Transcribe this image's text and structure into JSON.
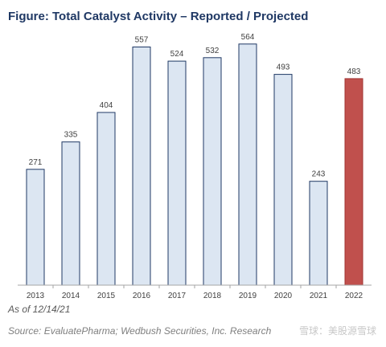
{
  "title": "Figure:  Total Catalyst Activity – Reported / Projected",
  "footnote": "As of 12/14/21",
  "source": "Source: EvaluatePharma; Wedbush Securities, Inc. Research",
  "watermark": "雪球：美股源雪球",
  "colors": {
    "reported": "#dce6f2",
    "projected": "#c0504d",
    "bar_border": "#1f3864",
    "projected_border": "#a03532",
    "title": "#1f3864"
  },
  "chart_data": {
    "type": "bar",
    "title": "Total Catalyst Activity – Reported / Projected",
    "xlabel": "",
    "ylabel": "",
    "categories": [
      "2013",
      "2014",
      "2015",
      "2016",
      "2017",
      "2018",
      "2019",
      "2020",
      "2021",
      "2022"
    ],
    "values": [
      271,
      335,
      404,
      557,
      524,
      532,
      564,
      493,
      243,
      483
    ],
    "projected": [
      false,
      false,
      false,
      false,
      false,
      false,
      false,
      false,
      false,
      true
    ],
    "ylim": [
      0,
      620
    ],
    "grid": false,
    "legend": "none"
  }
}
